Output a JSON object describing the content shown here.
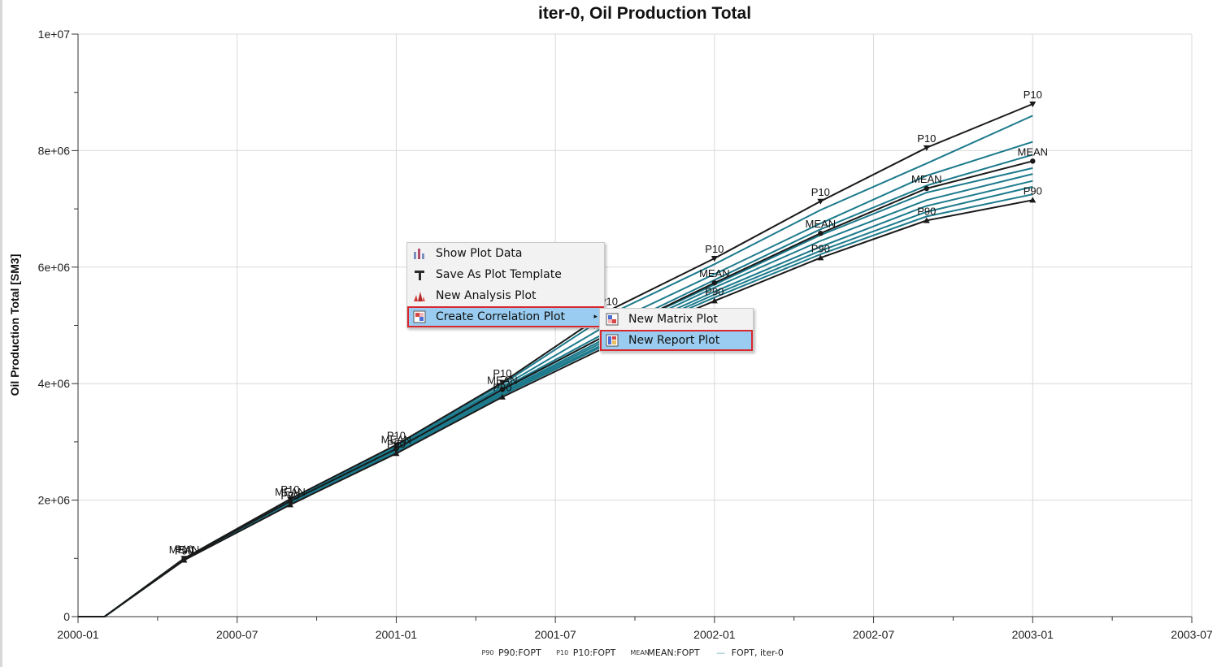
{
  "chart_data": {
    "type": "line",
    "title": "iter-0, Oil Production Total",
    "xlabel": "",
    "ylabel": "Oil Production Total [SM3]",
    "x_ticks": [
      "2000-01",
      "2000-07",
      "2001-01",
      "2001-07",
      "2002-01",
      "2002-07",
      "2003-01",
      "2003-07"
    ],
    "y_ticks": [
      "0",
      "2e+06",
      "4e+06",
      "6e+06",
      "8e+06",
      "1e+07"
    ],
    "xlim": [
      "2000-01",
      "2003-07"
    ],
    "ylim": [
      0,
      10000000
    ],
    "grid": true,
    "legend_position": "bottom",
    "statistics": [
      {
        "name": "P10:FOPT",
        "mark_label": "P10",
        "symbol": "down-triangle",
        "points": [
          [
            "2000-01",
            0
          ],
          [
            "2000-02",
            0
          ],
          [
            "2000-05",
            1000000
          ],
          [
            "2000-09",
            2020000
          ],
          [
            "2001-01",
            2950000
          ],
          [
            "2001-05",
            4020000
          ],
          [
            "2001-09",
            5250000
          ],
          [
            "2002-01",
            6150000
          ],
          [
            "2002-05",
            7130000
          ],
          [
            "2002-09",
            8050000
          ],
          [
            "2003-01",
            8800000
          ]
        ]
      },
      {
        "name": "MEAN:FOPT",
        "mark_label": "MEAN",
        "symbol": "circle",
        "points": [
          [
            "2000-01",
            0
          ],
          [
            "2000-02",
            0
          ],
          [
            "2000-05",
            990000
          ],
          [
            "2000-09",
            1980000
          ],
          [
            "2001-01",
            2880000
          ],
          [
            "2001-05",
            3900000
          ],
          [
            "2001-09",
            4850000
          ],
          [
            "2002-01",
            5730000
          ],
          [
            "2002-05",
            6580000
          ],
          [
            "2002-09",
            7350000
          ],
          [
            "2003-01",
            7820000
          ]
        ]
      },
      {
        "name": "P90:FOPT",
        "mark_label": "P90",
        "symbol": "up-triangle",
        "points": [
          [
            "2000-01",
            0
          ],
          [
            "2000-02",
            0
          ],
          [
            "2000-05",
            970000
          ],
          [
            "2000-09",
            1920000
          ],
          [
            "2001-01",
            2800000
          ],
          [
            "2001-05",
            3770000
          ],
          [
            "2001-09",
            4650000
          ],
          [
            "2002-01",
            5420000
          ],
          [
            "2002-05",
            6160000
          ],
          [
            "2002-09",
            6800000
          ],
          [
            "2003-01",
            7150000
          ]
        ]
      }
    ],
    "realizations": {
      "name": "FOPT, iter-0",
      "x": [
        "2000-01",
        "2000-02",
        "2000-05",
        "2000-09",
        "2001-01",
        "2001-05",
        "2001-09",
        "2002-01",
        "2002-05",
        "2002-09",
        "2003-01"
      ],
      "series": [
        [
          0,
          0,
          1000000,
          2010000,
          2930000,
          3990000,
          5180000,
          6050000,
          6980000,
          7780000,
          8600000
        ],
        [
          0,
          0,
          995000,
          2000000,
          2910000,
          3950000,
          5020000,
          5880000,
          6750000,
          7570000,
          8150000
        ],
        [
          0,
          0,
          990000,
          1990000,
          2890000,
          3920000,
          4900000,
          5780000,
          6650000,
          7400000,
          7930000
        ],
        [
          0,
          0,
          988000,
          1980000,
          2870000,
          3890000,
          4850000,
          5700000,
          6550000,
          7280000,
          7700000
        ],
        [
          0,
          0,
          985000,
          1970000,
          2860000,
          3860000,
          4800000,
          5650000,
          6450000,
          7150000,
          7600000
        ],
        [
          0,
          0,
          980000,
          1960000,
          2840000,
          3840000,
          4760000,
          5580000,
          6350000,
          7050000,
          7480000
        ],
        [
          0,
          0,
          978000,
          1950000,
          2830000,
          3820000,
          4720000,
          5530000,
          6280000,
          6950000,
          7380000
        ],
        [
          0,
          0,
          975000,
          1940000,
          2820000,
          3800000,
          4690000,
          5480000,
          6220000,
          6870000,
          7250000
        ]
      ]
    },
    "colors": {
      "statistic": "#1a1a1a",
      "realization": "#1c7a8c",
      "grid": "#d9d9d9"
    }
  },
  "legend": [
    {
      "symbol": "P90",
      "label": "P90:FOPT"
    },
    {
      "symbol": "P10",
      "label": "P10:FOPT"
    },
    {
      "symbol": "MEAN",
      "label": "MEAN:FOPT"
    },
    {
      "symbol": "—",
      "label": "FOPT, iter-0"
    }
  ],
  "context_menu": {
    "items": [
      {
        "label": "Show Plot Data",
        "icon": "bar-chart-icon"
      },
      {
        "label": "Save As Plot Template",
        "icon": "template-icon"
      },
      {
        "label": "New Analysis Plot",
        "icon": "analysis-icon"
      },
      {
        "label": "Create Correlation Plot",
        "icon": "correlation-icon",
        "has_submenu": true,
        "arrow": "▸"
      }
    ],
    "submenu": [
      {
        "label": "New Matrix Plot",
        "icon": "matrix-plot-icon"
      },
      {
        "label": "New Report Plot",
        "icon": "report-plot-icon"
      }
    ]
  }
}
